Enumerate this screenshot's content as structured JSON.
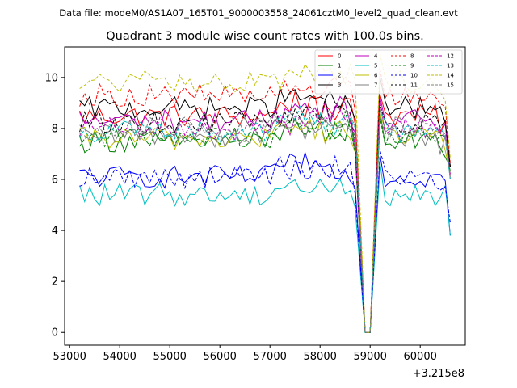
{
  "chart_data": {
    "type": "line",
    "suptitle": "Data file: modeM0/AS1A07_165T01_9000003558_24061cztM0_level2_quad_clean.evt",
    "title": "Quadrant 3 module wise count rates with 100.0s bins.",
    "xlabel": "",
    "ylabel": "",
    "x_offset_label": "+3.215e8",
    "xlim": [
      52900,
      60900
    ],
    "ylim": [
      -0.5,
      11.2
    ],
    "x_ticks": [
      53000,
      54000,
      55000,
      56000,
      57000,
      58000,
      59000,
      60000
    ],
    "x_tick_labels": [
      "53000",
      "54000",
      "55000",
      "56000",
      "57000",
      "58000",
      "59000",
      "60000"
    ],
    "y_ticks": [
      0,
      2,
      4,
      6,
      8,
      10
    ],
    "y_tick_labels": [
      "0",
      "2",
      "4",
      "6",
      "8",
      "10"
    ],
    "x_start": 53200,
    "x_step": 100,
    "gap": {
      "start": 58700,
      "dip1": 58900,
      "dip2": 59000,
      "end": 59200
    },
    "x_end": 60600,
    "legend_position": "top-right",
    "series": [
      {
        "name": "0",
        "color": "#ff0000",
        "dashed": false,
        "base": 8.5,
        "end": 6.5
      },
      {
        "name": "1",
        "color": "#008000",
        "dashed": false,
        "base": 7.5,
        "end": 6.5
      },
      {
        "name": "2",
        "color": "#0000ff",
        "dashed": false,
        "base": 6.1,
        "end": 3.8
      },
      {
        "name": "3",
        "color": "#000000",
        "dashed": false,
        "base": 8.8,
        "end": 6.5
      },
      {
        "name": "4",
        "color": "#bf00bf",
        "dashed": false,
        "base": 8.3,
        "end": 6.0
      },
      {
        "name": "5",
        "color": "#00bfbf",
        "dashed": false,
        "base": 5.4,
        "end": 3.8
      },
      {
        "name": "6",
        "color": "#bfbf00",
        "dashed": false,
        "base": 7.6,
        "end": 6.2
      },
      {
        "name": "7",
        "color": "#808080",
        "dashed": false,
        "base": 7.7,
        "end": 6.0
      },
      {
        "name": "8",
        "color": "#ff0000",
        "dashed": true,
        "base": 9.3,
        "end": 6.6
      },
      {
        "name": "9",
        "color": "#008000",
        "dashed": true,
        "base": 7.7,
        "end": 6.3
      },
      {
        "name": "10",
        "color": "#0000ff",
        "dashed": true,
        "base": 6.1,
        "end": 4.3
      },
      {
        "name": "11",
        "color": "#000000",
        "dashed": true,
        "base": 8.2,
        "end": 6.5
      },
      {
        "name": "12",
        "color": "#bf00bf",
        "dashed": true,
        "base": 8.0,
        "end": 6.2
      },
      {
        "name": "13",
        "color": "#00bfbf",
        "dashed": true,
        "base": 7.9,
        "end": 6.0
      },
      {
        "name": "14",
        "color": "#bfbf00",
        "dashed": true,
        "base": 9.8,
        "end": 6.8
      },
      {
        "name": "15",
        "color": "#808080",
        "dashed": true,
        "base": 8.0,
        "end": 6.1
      }
    ]
  }
}
